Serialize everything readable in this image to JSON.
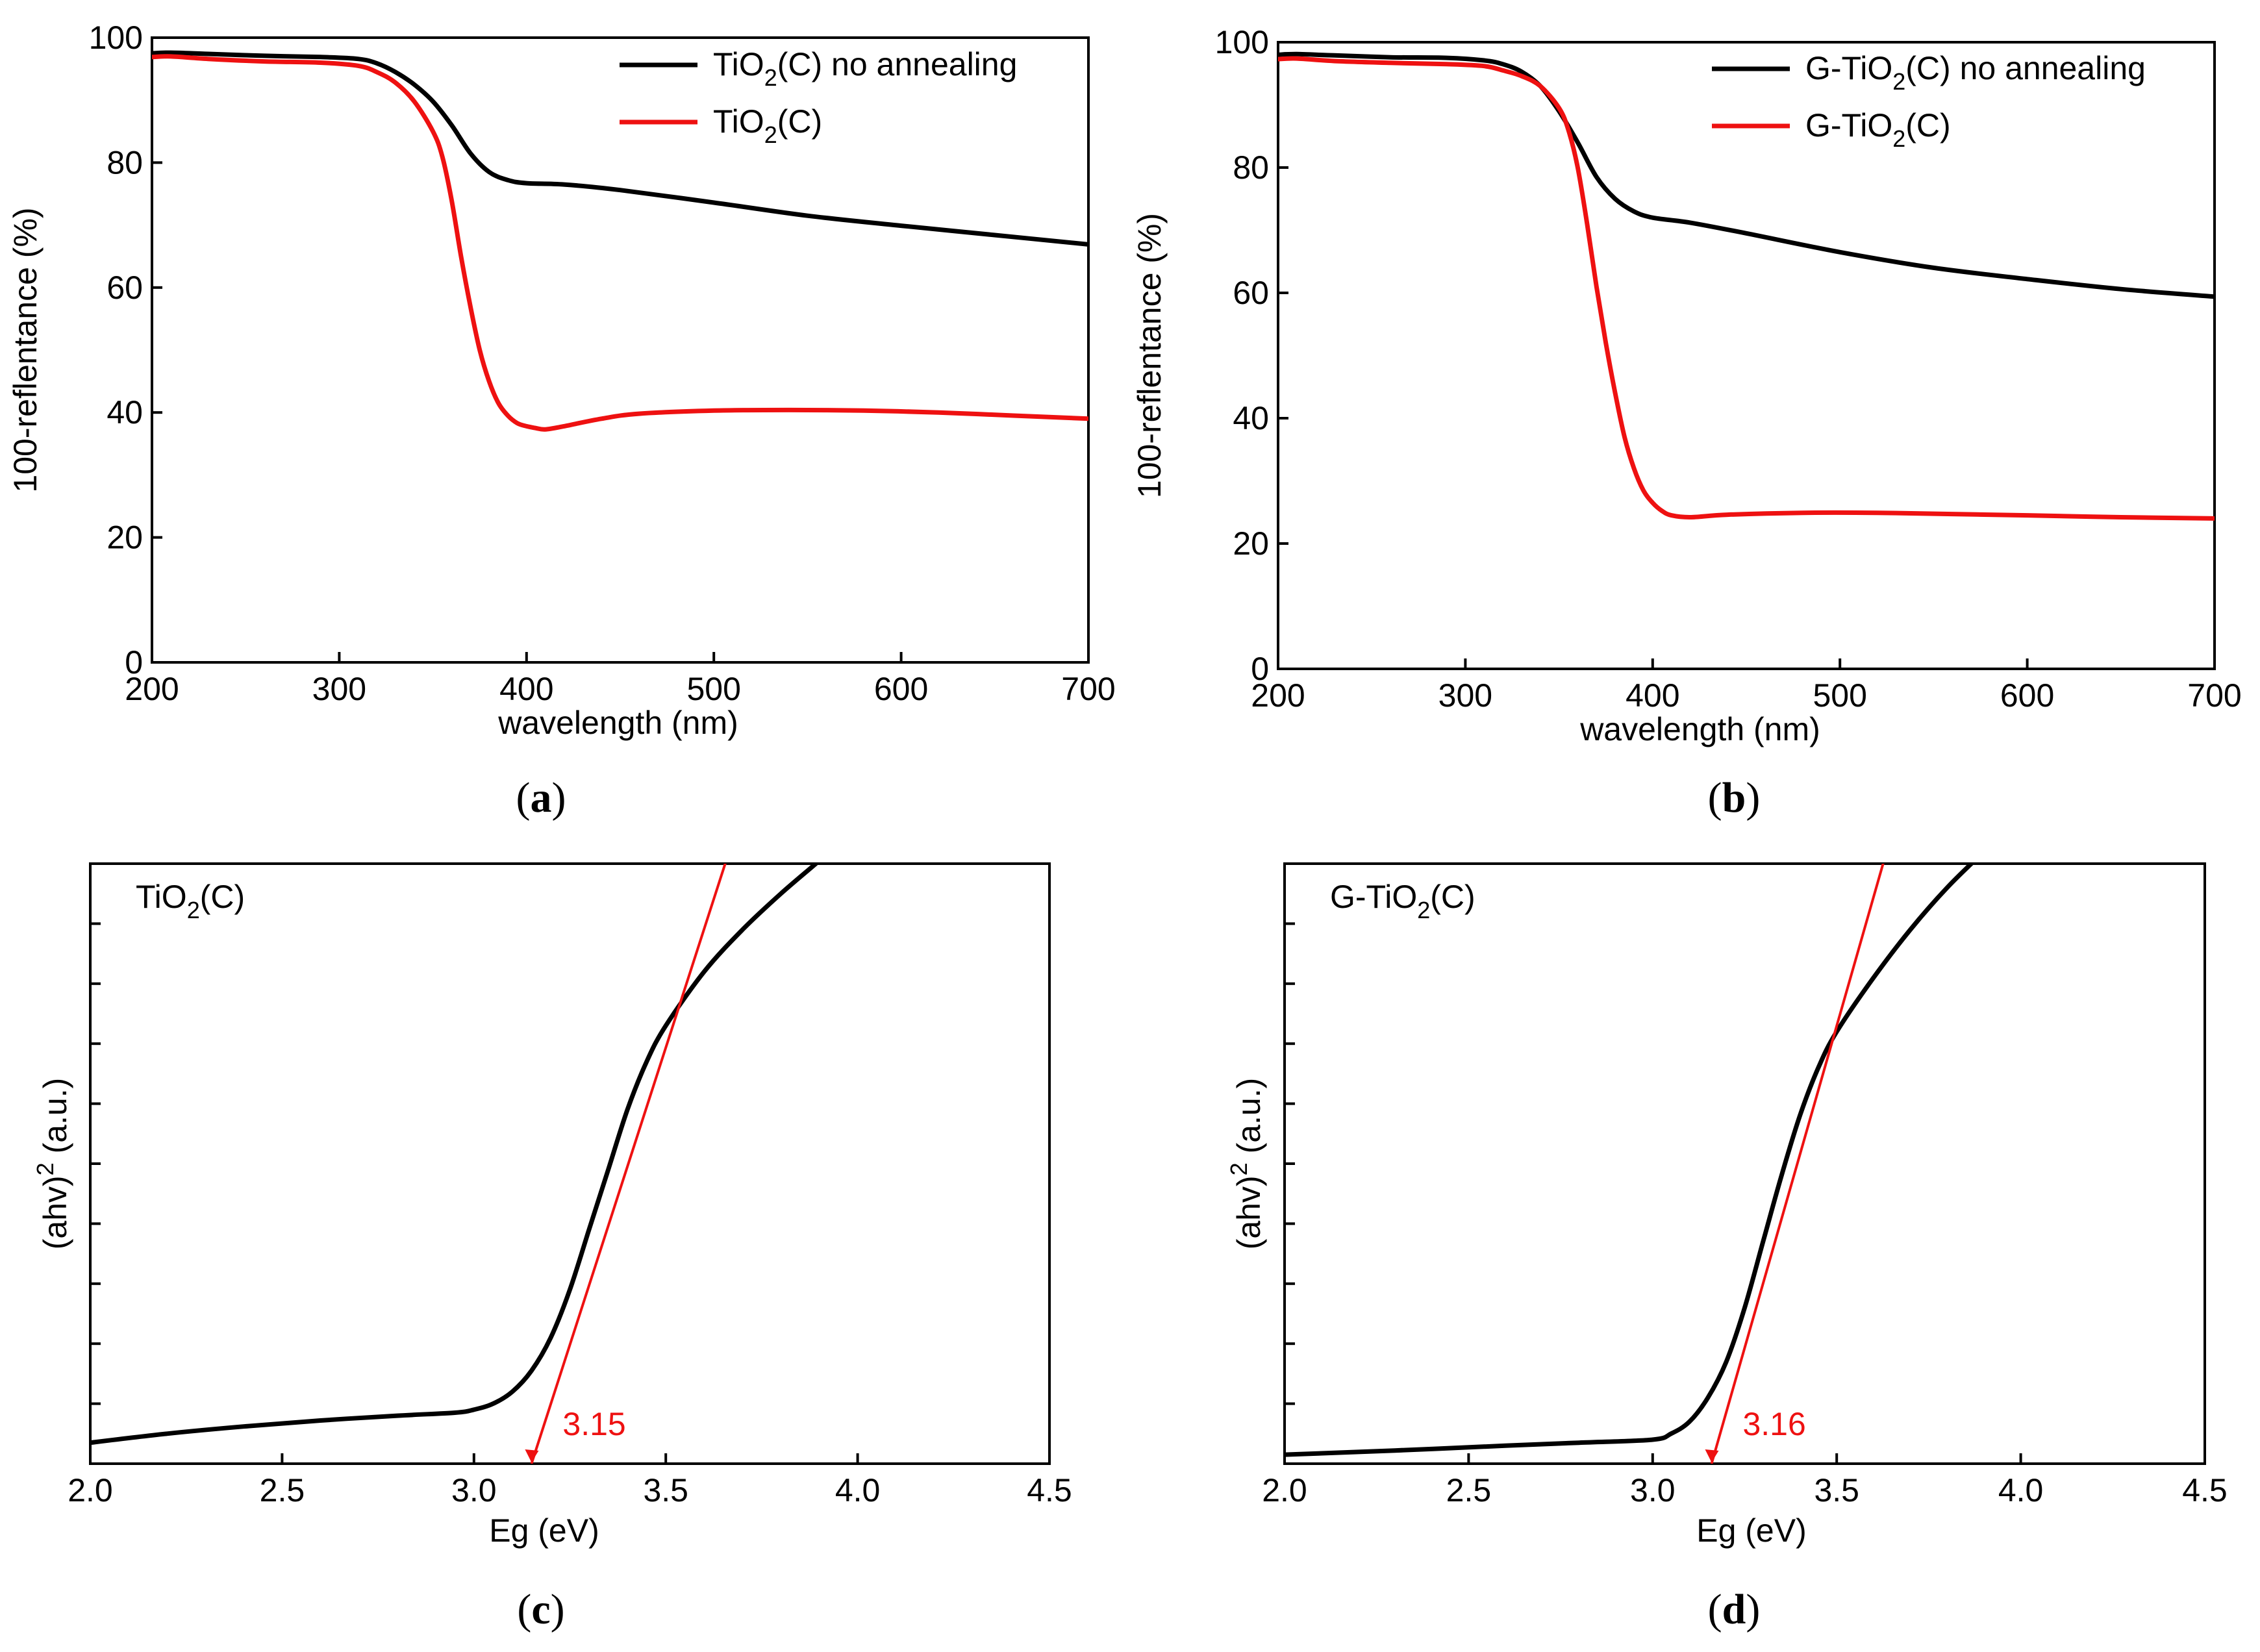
{
  "colors": {
    "series_black": "#000000",
    "series_red": "#ee1111",
    "axis": "#000000"
  },
  "captions": [
    "a",
    "b",
    "c",
    "d"
  ],
  "chart_data": [
    {
      "id": "a",
      "type": "line",
      "title": "",
      "xlabel": "wavelength (nm)",
      "ylabel": "100-reflentance (%)",
      "xlim": [
        200,
        700
      ],
      "ylim": [
        0,
        100
      ],
      "xticks": [
        200,
        300,
        400,
        500,
        600,
        700
      ],
      "yticks": [
        0,
        20,
        40,
        60,
        80,
        100
      ],
      "legend_position": "top-right",
      "series": [
        {
          "name": "TiO2(C) no annealing",
          "label_base": "TiO",
          "label_sub": "2",
          "label_tail": "(C) no annealing",
          "color": "#000000",
          "x": [
            200,
            210,
            230,
            260,
            290,
            310,
            320,
            330,
            340,
            350,
            360,
            370,
            380,
            390,
            400,
            420,
            450,
            500,
            550,
            600,
            650,
            700
          ],
          "y": [
            97.5,
            97.6,
            97.4,
            97.1,
            96.9,
            96.6,
            95.9,
            94.5,
            92.5,
            89.8,
            86.0,
            81.5,
            78.5,
            77.2,
            76.7,
            76.5,
            75.6,
            73.6,
            71.5,
            69.9,
            68.4,
            66.9
          ]
        },
        {
          "name": "TiO2(C)",
          "label_base": "TiO",
          "label_sub": "2",
          "label_tail": "(C)",
          "color": "#ee1111",
          "x": [
            200,
            210,
            230,
            260,
            290,
            310,
            320,
            330,
            340,
            350,
            355,
            360,
            365,
            370,
            375,
            380,
            385,
            390,
            395,
            400,
            405,
            410,
            420,
            440,
            460,
            500,
            540,
            580,
            620,
            660,
            700
          ],
          "y": [
            96.9,
            97.0,
            96.6,
            96.2,
            96.0,
            95.5,
            94.5,
            92.8,
            89.8,
            85.0,
            81.0,
            74.0,
            65.0,
            57.0,
            50.0,
            45.0,
            41.5,
            39.5,
            38.3,
            37.8,
            37.5,
            37.3,
            37.8,
            39.0,
            39.8,
            40.3,
            40.4,
            40.3,
            40.0,
            39.5,
            39.0
          ]
        }
      ]
    },
    {
      "id": "b",
      "type": "line",
      "title": "",
      "xlabel": "wavelength (nm)",
      "ylabel": "100-reflentance (%)",
      "xlim": [
        200,
        700
      ],
      "ylim": [
        0,
        100
      ],
      "xticks": [
        200,
        300,
        400,
        500,
        600,
        700
      ],
      "yticks": [
        0,
        20,
        40,
        60,
        80,
        100
      ],
      "legend_position": "top-right",
      "series": [
        {
          "name": "G-TiO2(C) no annealing",
          "label_base": "G-TiO",
          "label_sub": "2",
          "label_tail": "(C) no annealing",
          "color": "#000000",
          "x": [
            200,
            210,
            230,
            260,
            290,
            310,
            320,
            330,
            340,
            350,
            360,
            370,
            380,
            390,
            400,
            420,
            450,
            500,
            550,
            600,
            650,
            700
          ],
          "y": [
            98.0,
            98.1,
            97.9,
            97.6,
            97.5,
            97.1,
            96.5,
            95.3,
            93.0,
            89.0,
            84.0,
            78.5,
            75.0,
            73.0,
            72.0,
            71.2,
            69.5,
            66.5,
            64.0,
            62.2,
            60.6,
            59.4
          ]
        },
        {
          "name": "G-TiO2(C)",
          "label_base": "G-TiO",
          "label_sub": "2",
          "label_tail": "(C)",
          "color": "#ee1111",
          "x": [
            200,
            210,
            230,
            260,
            290,
            310,
            320,
            330,
            340,
            350,
            355,
            360,
            365,
            370,
            375,
            380,
            385,
            390,
            395,
            400,
            405,
            410,
            420,
            440,
            480,
            520,
            560,
            600,
            650,
            700
          ],
          "y": [
            97.3,
            97.4,
            97.0,
            96.7,
            96.5,
            96.2,
            95.5,
            94.6,
            93.0,
            89.5,
            86.0,
            80.0,
            71.0,
            61.0,
            52.0,
            44.0,
            37.0,
            32.0,
            28.5,
            26.5,
            25.2,
            24.5,
            24.2,
            24.6,
            24.9,
            24.9,
            24.7,
            24.5,
            24.2,
            24.0
          ]
        }
      ]
    },
    {
      "id": "c",
      "type": "line",
      "title": "",
      "xlabel": "Eg (eV)",
      "ylabel": "(ahv)² (a.u.)",
      "ylabel_base": "(ahv)",
      "ylabel_sup": "2",
      "ylabel_tail": " (a.u.)",
      "panel_label_base": "TiO",
      "panel_label_sub": "2",
      "panel_label_tail": "(C)",
      "xlim": [
        2.0,
        4.5
      ],
      "ylim": [
        0,
        10
      ],
      "xticks": [
        2.0,
        2.5,
        3.0,
        3.5,
        4.0,
        4.5
      ],
      "yticks_unlabeled": [
        1,
        2,
        3,
        4,
        5,
        6,
        7,
        8,
        9
      ],
      "annotation": {
        "text": "3.15",
        "x": 3.15,
        "color": "#ee1111"
      },
      "series": [
        {
          "name": "(ahv)^2 curve",
          "color": "#000000",
          "x": [
            2.0,
            2.2,
            2.4,
            2.6,
            2.8,
            2.95,
            3.0,
            3.05,
            3.1,
            3.15,
            3.2,
            3.25,
            3.3,
            3.35,
            3.4,
            3.45,
            3.5,
            3.6,
            3.7,
            3.8,
            3.9,
            3.94
          ],
          "y": [
            0.35,
            0.5,
            0.62,
            0.72,
            0.8,
            0.85,
            0.9,
            1.0,
            1.2,
            1.55,
            2.1,
            2.9,
            3.9,
            4.9,
            5.9,
            6.7,
            7.3,
            8.2,
            8.9,
            9.5,
            10.05,
            10.3
          ]
        },
        {
          "name": "tangent",
          "color": "#ee1111",
          "x": [
            3.15,
            3.67
          ],
          "y": [
            0,
            10.3
          ]
        }
      ]
    },
    {
      "id": "d",
      "type": "line",
      "title": "",
      "xlabel": "Eg (eV)",
      "ylabel": "(ahv)² (a.u.)",
      "ylabel_base": "(ahv)",
      "ylabel_sup": "2",
      "ylabel_tail": " (a.u.)",
      "panel_label_base": "G-TiO",
      "panel_label_sub": "2",
      "panel_label_tail": "(C)",
      "xlim": [
        2.0,
        4.5
      ],
      "ylim": [
        0,
        10
      ],
      "xticks": [
        2.0,
        2.5,
        3.0,
        3.5,
        4.0,
        4.5
      ],
      "yticks_unlabeled": [
        1,
        2,
        3,
        4,
        5,
        6,
        7,
        8,
        9
      ],
      "annotation": {
        "text": "3.16",
        "x": 3.16,
        "color": "#ee1111"
      },
      "series": [
        {
          "name": "(ahv)^2 curve",
          "color": "#000000",
          "x": [
            2.0,
            2.3,
            2.6,
            2.8,
            3.0,
            3.05,
            3.1,
            3.15,
            3.2,
            3.25,
            3.3,
            3.35,
            3.4,
            3.45,
            3.5,
            3.6,
            3.7,
            3.8,
            3.9,
            3.92
          ],
          "y": [
            0.15,
            0.22,
            0.3,
            0.35,
            0.4,
            0.5,
            0.7,
            1.1,
            1.7,
            2.6,
            3.7,
            4.8,
            5.8,
            6.6,
            7.2,
            8.1,
            8.9,
            9.6,
            10.2,
            10.3
          ]
        },
        {
          "name": "tangent",
          "color": "#ee1111",
          "x": [
            3.16,
            3.64
          ],
          "y": [
            0,
            10.3
          ]
        }
      ]
    }
  ]
}
